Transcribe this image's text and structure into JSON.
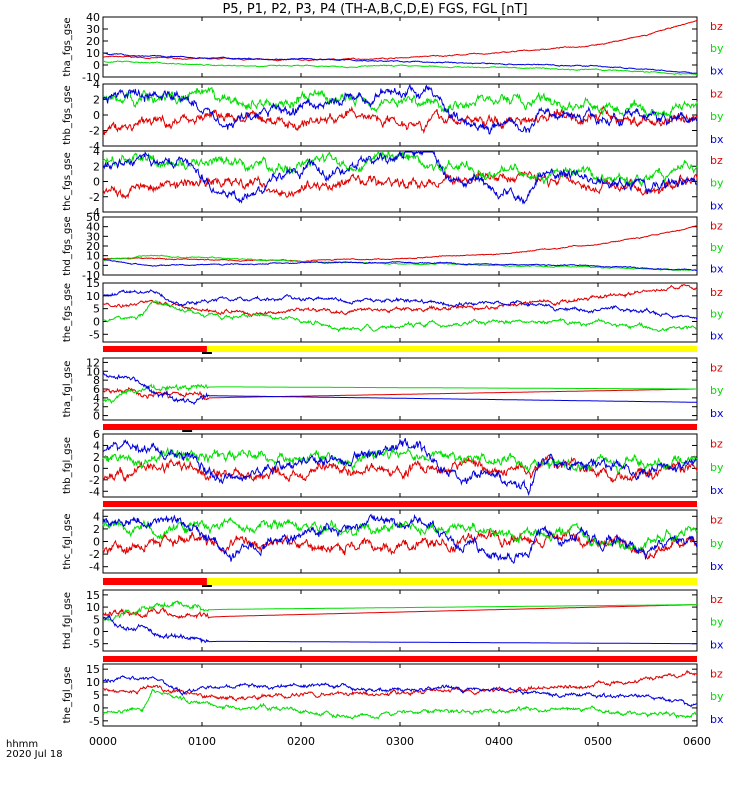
{
  "title": "P5, P1, P2, P3, P4 (TH-A,B,C,D,E) FGS, FGL [nT]",
  "footer": {
    "time_label": "hhmm",
    "date_label": "2020 Jul 18"
  },
  "colors": {
    "bz": "#e00000",
    "by": "#00dd00",
    "bx": "#0000dd",
    "bar_red": "#ff0000",
    "bar_yellow": "#ffff00",
    "bar_black": "#000000"
  },
  "chart_data": {
    "type": "line",
    "x_axis": {
      "range": [
        "0000",
        "0600"
      ],
      "ticks": [
        "0000",
        "0100",
        "0200",
        "0300",
        "0400",
        "0500",
        "0600"
      ]
    },
    "series_labels": [
      "bz",
      "by",
      "bx"
    ],
    "panels": [
      {
        "ylabel": "tha_fgs_gse",
        "ylim": [
          -10,
          40
        ],
        "yticks": [
          "40",
          "30",
          "20",
          "10",
          "0",
          "-10"
        ],
        "yvals": [
          40,
          30,
          20,
          10,
          0,
          -10
        ],
        "style": "smooth",
        "series": [
          {
            "name": "bz",
            "hours": [
              0,
              0.5,
              1,
              2,
              3,
              4,
              5,
              5.5,
              6
            ],
            "values": [
              7,
              6,
              5,
              4,
              6,
              10,
              17,
              25,
              37
            ]
          },
          {
            "name": "by",
            "hours": [
              0,
              0.5,
              1,
              2,
              3,
              4,
              5,
              6
            ],
            "values": [
              3,
              2,
              0,
              -1,
              -1,
              -2,
              -4,
              -8
            ]
          },
          {
            "name": "bx",
            "hours": [
              0,
              0.3,
              1,
              2,
              3,
              4,
              5,
              6
            ],
            "values": [
              10,
              8,
              6,
              5,
              3,
              1,
              -1,
              -7
            ]
          }
        ],
        "state_bar": []
      },
      {
        "ylabel": "thb_fgs_gse",
        "ylim": [
          -4,
          4
        ],
        "yticks": [
          "4",
          "2",
          "0",
          "-2",
          "-4"
        ],
        "yvals": [
          4,
          2,
          0,
          -2,
          -4
        ],
        "style": "noisy",
        "series": [
          {
            "name": "bz",
            "hours": [
              0,
              0.5,
              1,
              1.5,
              2,
              2.5,
              3,
              3.5,
              4,
              4.5,
              5,
              5.5,
              6
            ],
            "values": [
              -2,
              -1,
              0,
              -0.5,
              -1,
              0,
              -0.5,
              -0.5,
              -1,
              0.5,
              0,
              -1,
              0
            ]
          },
          {
            "name": "by",
            "hours": [
              0,
              0.5,
              1,
              1.5,
              2,
              2.5,
              3,
              3.5,
              4,
              4.5,
              5,
              5.5,
              6
            ],
            "values": [
              2,
              2.5,
              2,
              1.5,
              2,
              2,
              2,
              1.5,
              2,
              1.5,
              1,
              0,
              2
            ]
          },
          {
            "name": "bx",
            "hours": [
              0,
              0.5,
              0.9,
              1.2,
              2,
              2.5,
              3,
              3.3,
              3.5,
              4.3,
              4.4,
              5,
              5.5,
              6
            ],
            "values": [
              2,
              3,
              2,
              -1,
              1,
              2,
              3,
              3,
              0,
              -2,
              0.5,
              0,
              -0.5,
              0
            ]
          }
        ],
        "state_bar": []
      },
      {
        "ylabel": "thc_fgs_gse",
        "ylim": [
          -4,
          4
        ],
        "yticks": [
          "4",
          "2",
          "0",
          "-2",
          "-4"
        ],
        "yvals": [
          4,
          2,
          0,
          -2,
          -4
        ],
        "style": "noisy",
        "series": [
          {
            "name": "bz",
            "hours": [
              0,
              0.5,
              1,
              1.5,
              2,
              2.5,
              3,
              3.5,
              4,
              4.5,
              5,
              5.5,
              6
            ],
            "values": [
              -1,
              -0.5,
              0,
              -0.5,
              -1,
              0,
              -0.5,
              0,
              0.5,
              0.5,
              0,
              -1,
              0
            ]
          },
          {
            "name": "by",
            "hours": [
              0,
              0.5,
              1,
              1.5,
              2,
              2.5,
              3,
              3.5,
              4,
              4.5,
              5,
              5.5,
              6
            ],
            "values": [
              3,
              2.5,
              2,
              2,
              2,
              2.5,
              3,
              2,
              2,
              1,
              0.5,
              0,
              2
            ]
          },
          {
            "name": "bx",
            "hours": [
              0,
              0.5,
              0.9,
              1.3,
              2,
              2.5,
              3,
              3.3,
              3.5,
              4.3,
              4.4,
              5,
              5.5,
              6
            ],
            "values": [
              2,
              3,
              2,
              -2,
              1,
              2,
              3,
              3.5,
              0,
              -2,
              1,
              0.5,
              -1,
              0
            ]
          }
        ],
        "state_bar": []
      },
      {
        "ylabel": "thd_fgs_gse",
        "ylim": [
          -10,
          50
        ],
        "yticks": [
          "50",
          "40",
          "30",
          "20",
          "10",
          "0",
          "-10"
        ],
        "yvals": [
          50,
          40,
          30,
          20,
          10,
          0,
          -10
        ],
        "style": "smooth",
        "series": [
          {
            "name": "bz",
            "hours": [
              0,
              0.5,
              1,
              2,
              3,
              4,
              5,
              5.5,
              6
            ],
            "values": [
              7,
              7,
              6,
              5,
              7,
              12,
              22,
              30,
              41
            ]
          },
          {
            "name": "by",
            "hours": [
              0,
              0.5,
              1,
              2,
              3,
              4,
              5,
              6
            ],
            "values": [
              5,
              10,
              8,
              4,
              2,
              0,
              -2,
              -5
            ]
          },
          {
            "name": "bx",
            "hours": [
              0,
              0.5,
              1,
              2,
              3,
              4,
              5,
              6
            ],
            "values": [
              6,
              0,
              1,
              3,
              3,
              1,
              -1,
              -5
            ]
          }
        ],
        "state_bar": []
      },
      {
        "ylabel": "the_fgs_gse",
        "ylim": [
          -8,
          15
        ],
        "yticks": [
          "15",
          "10",
          "5",
          "0",
          "-5"
        ],
        "yvals": [
          15,
          10,
          5,
          0,
          -5
        ],
        "style": "wavy",
        "series": [
          {
            "name": "bz",
            "hours": [
              0,
              0.3,
              0.5,
              1,
              1.5,
              2,
              3,
              4,
              5,
              5.5,
              6
            ],
            "values": [
              7,
              6,
              8,
              4,
              4,
              4,
              5,
              6,
              9,
              11,
              14
            ]
          },
          {
            "name": "by",
            "hours": [
              0,
              0.4,
              0.5,
              1,
              2,
              2.5,
              3,
              4,
              5,
              6
            ],
            "values": [
              1,
              2,
              8,
              3,
              1,
              -3,
              -2,
              0,
              -1,
              -3
            ]
          },
          {
            "name": "bx",
            "hours": [
              0,
              0.5,
              0.8,
              1,
              2,
              3,
              4,
              5,
              5.5,
              6
            ],
            "values": [
              10,
              12,
              6,
              9,
              9,
              8,
              7,
              5,
              4,
              1
            ]
          }
        ],
        "state_bar": [
          {
            "from": 0,
            "to": 1.05,
            "color": "bar_red"
          },
          {
            "from": 1.05,
            "to": 6,
            "color": "bar_yellow"
          }
        ]
      },
      {
        "ylabel": "tha_fgl_gse",
        "ylim": [
          -1,
          13
        ],
        "yticks": [
          "12",
          "10",
          "8",
          "6",
          "4",
          "2",
          "0"
        ],
        "yvals": [
          12,
          10,
          8,
          6,
          4,
          2,
          0
        ],
        "style": "gap",
        "series": [
          {
            "name": "bz",
            "hours": [
              0,
              0.5,
              1.05,
              6
            ],
            "values": [
              6,
              5,
              4,
              6
            ]
          },
          {
            "name": "by",
            "hours": [
              0,
              0.5,
              1.05,
              6
            ],
            "values": [
              3,
              6,
              6.5,
              6
            ]
          },
          {
            "name": "bx",
            "hours": [
              0,
              0.3,
              0.6,
              1.05,
              6
            ],
            "values": [
              10,
              8,
              4,
              4.5,
              3
            ]
          }
        ],
        "state_bar": [
          {
            "from": 0,
            "to": 6,
            "color": "bar_red"
          }
        ]
      },
      {
        "ylabel": "thb_fgl_gse",
        "ylim": [
          -5,
          6
        ],
        "yticks": [
          "6",
          "4",
          "2",
          "0",
          "-2",
          "-4"
        ],
        "yvals": [
          6,
          4,
          2,
          0,
          -2,
          -4
        ],
        "style": "noisy",
        "series": [
          {
            "name": "bz",
            "hours": [
              0,
              0.5,
              1,
              1.5,
              2,
              2.5,
              3,
              3.5,
              4,
              4.5,
              5,
              5.5,
              6
            ],
            "values": [
              -2,
              -1,
              0,
              -0.5,
              -1,
              0,
              -0.5,
              0.5,
              0,
              0.5,
              0,
              -1,
              0
            ]
          },
          {
            "name": "by",
            "hours": [
              0,
              0.5,
              1,
              1.5,
              2,
              2.5,
              3,
              3.5,
              4,
              4.5,
              5,
              5.5,
              6
            ],
            "values": [
              2,
              2,
              2.5,
              2,
              1.5,
              2,
              2.5,
              2,
              2,
              1,
              0.5,
              0,
              2
            ]
          },
          {
            "name": "bx",
            "hours": [
              0,
              0.5,
              0.9,
              1.2,
              2,
              2.5,
              3,
              3.2,
              3.5,
              4.3,
              4.4,
              5,
              5.5,
              6
            ],
            "values": [
              3,
              3.5,
              2,
              -2,
              1,
              2,
              3,
              3.5,
              -1,
              -3,
              1,
              0.5,
              -1,
              0
            ]
          }
        ],
        "state_bar": [
          {
            "from": 0,
            "to": 6,
            "color": "bar_red"
          }
        ]
      },
      {
        "ylabel": "thc_fgl_gse",
        "ylim": [
          -5,
          5
        ],
        "yticks": [
          "4",
          "2",
          "0",
          "-2",
          "-4"
        ],
        "yvals": [
          4,
          2,
          0,
          -2,
          -4
        ],
        "style": "noisy",
        "series": [
          {
            "name": "bz",
            "hours": [
              0,
              0.5,
              1,
              1.5,
              2,
              2.5,
              3,
              3.5,
              4,
              4.5,
              5,
              5.5,
              6
            ],
            "values": [
              -1,
              -0.5,
              0,
              -0.5,
              -1,
              0,
              -0.5,
              0,
              0.5,
              0.5,
              0,
              -1,
              0
            ]
          },
          {
            "name": "by",
            "hours": [
              0,
              0.5,
              1,
              1.5,
              2,
              2.5,
              3,
              3.5,
              4,
              4.5,
              5,
              5.5,
              6
            ],
            "values": [
              3,
              2.5,
              2,
              2,
              2.5,
              2,
              2.5,
              2,
              2,
              1,
              0.5,
              0,
              2
            ]
          },
          {
            "name": "bx",
            "hours": [
              0,
              0.5,
              0.9,
              1.3,
              2,
              2.5,
              3,
              3.3,
              3.5,
              4.3,
              4.4,
              5,
              5.5,
              6
            ],
            "values": [
              3,
              3.5,
              2,
              -2,
              1,
              2,
              3,
              3.5,
              0,
              -2,
              1,
              0.5,
              -1,
              0
            ]
          }
        ],
        "state_bar": [
          {
            "from": 0,
            "to": 1.05,
            "color": "bar_red"
          },
          {
            "from": 1.05,
            "to": 6,
            "color": "bar_yellow"
          }
        ]
      },
      {
        "ylabel": "thd_fgl_gse",
        "ylim": [
          -8,
          17
        ],
        "yticks": [
          "15",
          "10",
          "5",
          "0",
          "-5"
        ],
        "yvals": [
          15,
          10,
          5,
          0,
          -5
        ],
        "style": "gap",
        "series": [
          {
            "name": "bz",
            "hours": [
              0,
              0.5,
              1.05,
              6
            ],
            "values": [
              7,
              8,
              6,
              11
            ]
          },
          {
            "name": "by",
            "hours": [
              0,
              0.5,
              1.05,
              6
            ],
            "values": [
              5,
              11,
              9,
              11
            ]
          },
          {
            "name": "bx",
            "hours": [
              0,
              0.4,
              0.6,
              1.05,
              6
            ],
            "values": [
              6,
              2,
              -2,
              -4,
              -5
            ]
          }
        ],
        "state_bar": [
          {
            "from": 0,
            "to": 6,
            "color": "bar_red"
          }
        ]
      },
      {
        "ylabel": "the_fgl_gse",
        "ylim": [
          -7,
          17
        ],
        "yticks": [
          "15",
          "10",
          "5",
          "0",
          "-5"
        ],
        "yvals": [
          15,
          10,
          5,
          0,
          -5
        ],
        "style": "wavy",
        "series": [
          {
            "name": "bz",
            "hours": [
              0,
              0.3,
              0.5,
              1,
              1.5,
              2,
              3,
              4,
              5,
              5.5,
              6
            ],
            "values": [
              7,
              6,
              8,
              4,
              4,
              5,
              6,
              7,
              9,
              11,
              14
            ]
          },
          {
            "name": "by",
            "hours": [
              0,
              0.4,
              0.5,
              1,
              2,
              2.5,
              3,
              4,
              5,
              6
            ],
            "values": [
              -2,
              -1,
              7,
              1,
              -1,
              -3,
              -2,
              -1,
              -1,
              -3
            ]
          },
          {
            "name": "bx",
            "hours": [
              0,
              0.5,
              0.8,
              1,
              2,
              3,
              4,
              5,
              5.5,
              6
            ],
            "values": [
              11,
              12,
              6,
              8,
              9,
              7,
              7,
              5,
              4,
              1
            ]
          }
        ],
        "state_bar": []
      }
    ]
  }
}
